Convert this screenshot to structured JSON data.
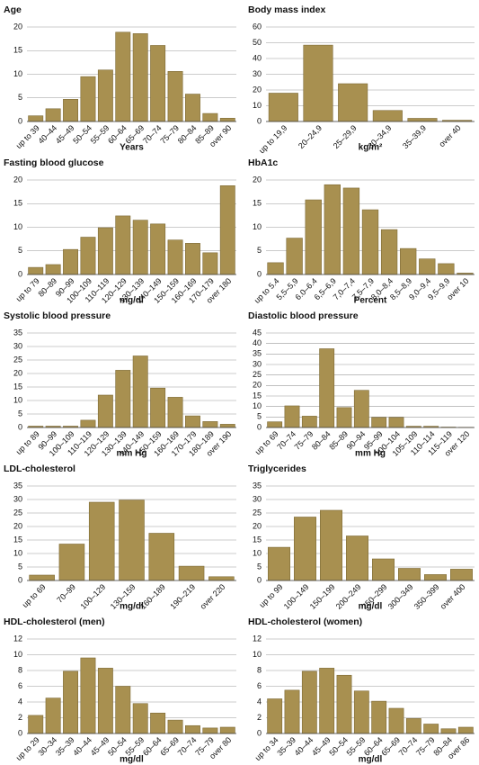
{
  "chart_data": [
    {
      "type": "bar",
      "title": "Age",
      "x_label": "Years",
      "color": "#a89050",
      "grid": true,
      "categories": [
        "up to 39",
        "40–44",
        "45–49",
        "50–54",
        "55–59",
        "60–64",
        "65–69",
        "70–74",
        "75–79",
        "80–84",
        "85–89",
        "over 90"
      ],
      "values": [
        1.2,
        2.7,
        4.7,
        9.5,
        10.9,
        18.9,
        18.6,
        16.1,
        10.6,
        5.8,
        1.7,
        0.7
      ],
      "ylim": [
        0,
        20
      ],
      "yticks": [
        0,
        5,
        10,
        15,
        20
      ]
    },
    {
      "type": "bar",
      "title": "Body mass index",
      "x_label": "kg/m²",
      "color": "#a89050",
      "grid": true,
      "categories": [
        "up to 19,9",
        "20–24,9",
        "25–29,9",
        "30–34,9",
        "35–39,9",
        "over 40"
      ],
      "values": [
        18,
        48.5,
        24,
        7,
        2,
        0.8
      ],
      "ylim": [
        0,
        60
      ],
      "yticks": [
        0,
        10,
        20,
        30,
        40,
        50,
        60
      ]
    },
    {
      "type": "bar",
      "title": "Fasting blood glucose",
      "x_label": "mg/dl",
      "color": "#a89050",
      "grid": true,
      "categories": [
        "up to 79",
        "80–89",
        "90–99",
        "100–109",
        "110–119",
        "120–129",
        "130–139",
        "140–149",
        "150–159",
        "160–169",
        "170–179",
        "over 180"
      ],
      "values": [
        1.5,
        2.1,
        5.3,
        7.9,
        9.9,
        12.4,
        11.5,
        10.7,
        7.3,
        6.6,
        4.6,
        18.8
      ],
      "ylim": [
        0,
        20
      ],
      "yticks": [
        0,
        5,
        10,
        15,
        20
      ]
    },
    {
      "type": "bar",
      "title": "HbA1c",
      "x_label": "Percent",
      "color": "#a89050",
      "grid": true,
      "categories": [
        "up to 5.4",
        "5,5–5,9",
        "6.0–6.4",
        "6,5–6,9",
        "7,0–7,4",
        "7,5–7,9",
        "8,0–8,4",
        "8,5–8,9",
        "9,0–9,4",
        "9,5–9,9",
        "over 10"
      ],
      "values": [
        2.5,
        7.7,
        15.8,
        19,
        18.3,
        13.7,
        9.5,
        5.5,
        3.3,
        2.3,
        0.3
      ],
      "ylim": [
        0,
        20
      ],
      "yticks": [
        0,
        5,
        10,
        15,
        20
      ]
    },
    {
      "type": "bar",
      "title": "Systolic blood pressure",
      "x_label": "mm Hg",
      "color": "#a89050",
      "grid": true,
      "categories": [
        "up to 89",
        "90–99",
        "100–109",
        "110–119",
        "120–129",
        "130–139",
        "140–149",
        "150–159",
        "160–169",
        "170–179",
        "180–189",
        "over 190"
      ],
      "values": [
        0.5,
        0.5,
        0.5,
        2.7,
        12,
        21.2,
        26.5,
        14.6,
        11.2,
        4.3,
        2.2,
        1.2
      ],
      "ylim": [
        0,
        35
      ],
      "yticks": [
        0,
        5,
        10,
        15,
        20,
        25,
        30,
        35
      ]
    },
    {
      "type": "bar",
      "title": "Diastolic blood pressure",
      "x_label": "mm Hg",
      "color": "#a89050",
      "grid": true,
      "categories": [
        "up to 69",
        "70–74",
        "75–79",
        "80–84",
        "85–89",
        "90–94",
        "95–99",
        "100–104",
        "105–109",
        "110–114",
        "115–119",
        "over 120"
      ],
      "values": [
        2.7,
        10.3,
        5.4,
        37.5,
        9.5,
        17.7,
        4.8,
        4.8,
        0.6,
        0.6,
        0.2,
        0.1
      ],
      "ylim": [
        0,
        45
      ],
      "yticks": [
        0,
        5,
        10,
        15,
        20,
        25,
        30,
        35,
        40,
        45
      ]
    },
    {
      "type": "bar",
      "title": "LDL-cholesterol",
      "x_label": "mg/dl",
      "color": "#a89050",
      "grid": true,
      "categories": [
        "up to 69",
        "70–99",
        "100–129",
        "130–159",
        "160–189",
        "190–219",
        "over 220"
      ],
      "values": [
        2,
        13.5,
        29,
        29.8,
        17.5,
        5.3,
        1.4
      ],
      "ylim": [
        0,
        35
      ],
      "yticks": [
        0,
        5,
        10,
        15,
        20,
        25,
        30,
        35
      ]
    },
    {
      "type": "bar",
      "title": "Triglycerides",
      "x_label": "mg/dl",
      "color": "#a89050",
      "grid": true,
      "categories": [
        "up to 99",
        "100–149",
        "150–199",
        "200–249",
        "250–299",
        "300–349",
        "350–399",
        "over 400"
      ],
      "values": [
        12.3,
        23.5,
        26,
        16.5,
        8,
        4.5,
        2.2,
        4.2
      ],
      "ylim": [
        0,
        35
      ],
      "yticks": [
        0,
        5,
        10,
        15,
        20,
        25,
        30,
        35
      ]
    },
    {
      "type": "bar",
      "title": "HDL-cholesterol (men)",
      "x_label": "mg/dl",
      "color": "#a89050",
      "grid": true,
      "categories": [
        "up to 29",
        "30–34",
        "35–39",
        "40–44",
        "45–49",
        "50–54",
        "55–59",
        "60–64",
        "65–69",
        "70–74",
        "75–79",
        "over 80"
      ],
      "values": [
        2.3,
        4.5,
        7.9,
        9.6,
        8.3,
        6,
        3.8,
        2.6,
        1.7,
        1,
        0.7,
        0.8
      ],
      "ylim": [
        0,
        12
      ],
      "yticks": [
        0,
        2,
        4,
        6,
        8,
        10,
        12
      ]
    },
    {
      "type": "bar",
      "title": "HDL-cholesterol (women)",
      "x_label": "mg/dl",
      "color": "#a89050",
      "grid": true,
      "categories": [
        "up to 34",
        "35–39",
        "40–44",
        "45–49",
        "50–54",
        "55–59",
        "60–64",
        "65–69",
        "70–74",
        "75–79",
        "80–84",
        "over 86"
      ],
      "values": [
        4.4,
        5.5,
        7.9,
        8.3,
        7.4,
        5.4,
        4.1,
        3.2,
        1.9,
        1.2,
        0.6,
        0.8
      ],
      "ylim": [
        0,
        12
      ],
      "yticks": [
        0,
        2,
        4,
        6,
        8,
        10,
        12
      ]
    }
  ]
}
